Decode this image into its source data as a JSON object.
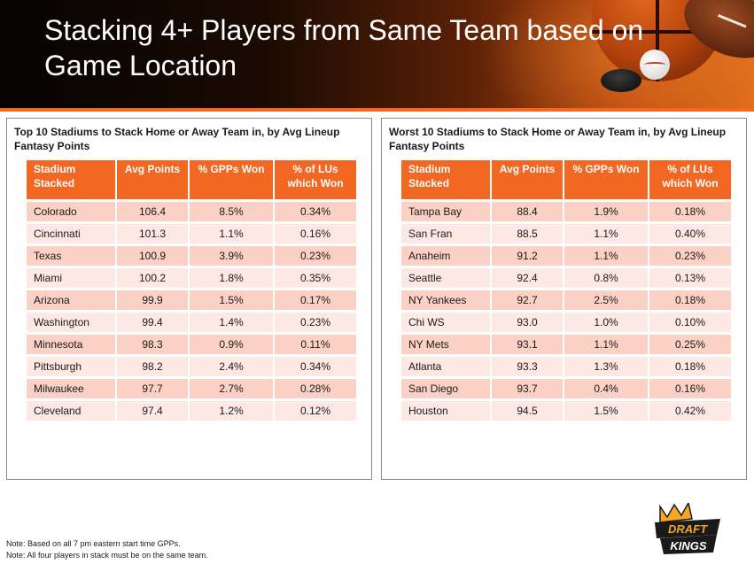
{
  "header": {
    "title_line1": "Stacking 4+ Players from Same Team based on",
    "title_line2": "Game Location"
  },
  "columns": [
    "Stadium Stacked",
    "Avg Points",
    "% GPPs Won",
    "% of LUs which Won"
  ],
  "left_table": {
    "title": "Top 10 Stadiums to Stack Home or Away Team in, by Avg Lineup Fantasy Points",
    "rows": [
      [
        "Colorado",
        "106.4",
        "8.5%",
        "0.34%"
      ],
      [
        "Cincinnati",
        "101.3",
        "1.1%",
        "0.16%"
      ],
      [
        "Texas",
        "100.9",
        "3.9%",
        "0.23%"
      ],
      [
        "Miami",
        "100.2",
        "1.8%",
        "0.35%"
      ],
      [
        "Arizona",
        "99.9",
        "1.5%",
        "0.17%"
      ],
      [
        "Washington",
        "99.4",
        "1.4%",
        "0.23%"
      ],
      [
        "Minnesota",
        "98.3",
        "0.9%",
        "0.11%"
      ],
      [
        "Pittsburgh",
        "98.2",
        "2.4%",
        "0.34%"
      ],
      [
        "Milwaukee",
        "97.7",
        "2.7%",
        "0.28%"
      ],
      [
        "Cleveland",
        "97.4",
        "1.2%",
        "0.12%"
      ]
    ]
  },
  "right_table": {
    "title": "Worst 10 Stadiums to Stack Home or Away Team in, by Avg Lineup Fantasy Points",
    "rows": [
      [
        "Tampa Bay",
        "88.4",
        "1.9%",
        "0.18%"
      ],
      [
        "San Fran",
        "88.5",
        "1.1%",
        "0.40%"
      ],
      [
        "Anaheim",
        "91.2",
        "1.1%",
        "0.23%"
      ],
      [
        "Seattle",
        "92.4",
        "0.8%",
        "0.13%"
      ],
      [
        "NY Yankees",
        "92.7",
        "2.5%",
        "0.18%"
      ],
      [
        "Chi WS",
        "93.0",
        "1.0%",
        "0.10%"
      ],
      [
        "NY Mets",
        "93.1",
        "1.1%",
        "0.25%"
      ],
      [
        "Atlanta",
        "93.3",
        "1.3%",
        "0.18%"
      ],
      [
        "San Diego",
        "93.7",
        "0.4%",
        "0.16%"
      ],
      [
        "Houston",
        "94.5",
        "1.5%",
        "0.42%"
      ]
    ]
  },
  "notes": [
    "Note: Based on all 7 pm eastern start time GPPs.",
    "Note: All four players in stack must be on the same team."
  ],
  "logo": {
    "line1": "DRAFT",
    "line2": "KINGS"
  },
  "colors": {
    "accent": "#f26722",
    "row_odd": "#fbd1c6",
    "row_even": "#fde8e3"
  }
}
